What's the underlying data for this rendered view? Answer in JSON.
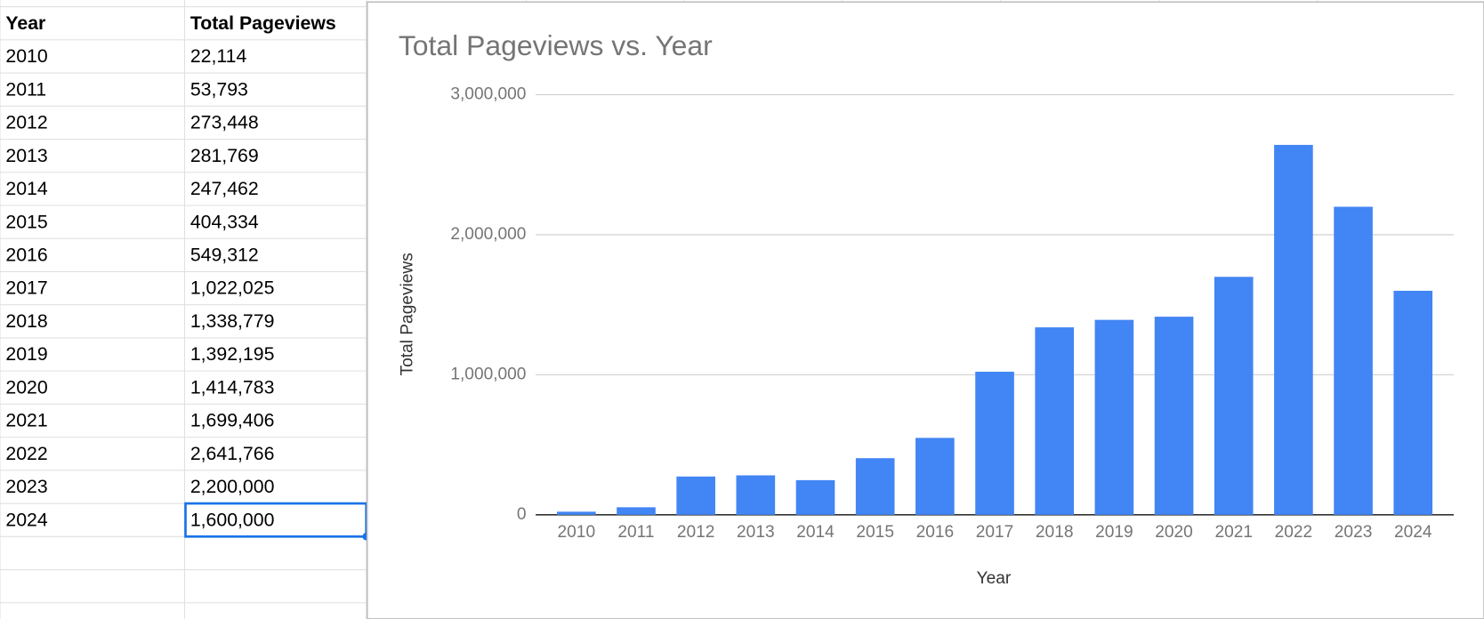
{
  "table": {
    "header": [
      "Year",
      "Total Pageviews"
    ],
    "rows": [
      [
        "2010",
        "22,114"
      ],
      [
        "2011",
        "53,793"
      ],
      [
        "2012",
        "273,448"
      ],
      [
        "2013",
        "281,769"
      ],
      [
        "2014",
        "247,462"
      ],
      [
        "2015",
        "404,334"
      ],
      [
        "2016",
        "549,312"
      ],
      [
        "2017",
        "1,022,025"
      ],
      [
        "2018",
        "1,338,779"
      ],
      [
        "2019",
        "1,392,195"
      ],
      [
        "2020",
        "1,414,783"
      ],
      [
        "2021",
        "1,699,406"
      ],
      [
        "2022",
        "2,641,766"
      ],
      [
        "2023",
        "2,200,000"
      ],
      [
        "2024",
        "1,600,000"
      ]
    ]
  },
  "chart_data": {
    "type": "bar",
    "title": "Total Pageviews vs. Year",
    "x_label": "Year",
    "y_label": "Total Pageviews",
    "categories": [
      "2010",
      "2011",
      "2012",
      "2013",
      "2014",
      "2015",
      "2016",
      "2017",
      "2018",
      "2019",
      "2020",
      "2021",
      "2022",
      "2023",
      "2024"
    ],
    "values": [
      22114,
      53793,
      273448,
      281769,
      247462,
      404334,
      549312,
      1022025,
      1338779,
      1392195,
      1414783,
      1699406,
      2641766,
      2200000,
      1600000
    ],
    "color": "#4285f4",
    "ylim": [
      0,
      3000000
    ],
    "yticks": [
      0,
      {
        "value": 1000000,
        "label": "1,000,000"
      },
      {
        "value": 2000000,
        "label": "2,000,000"
      },
      {
        "value": 3000000,
        "label": "3,000,000"
      }
    ],
    "grid": true
  }
}
